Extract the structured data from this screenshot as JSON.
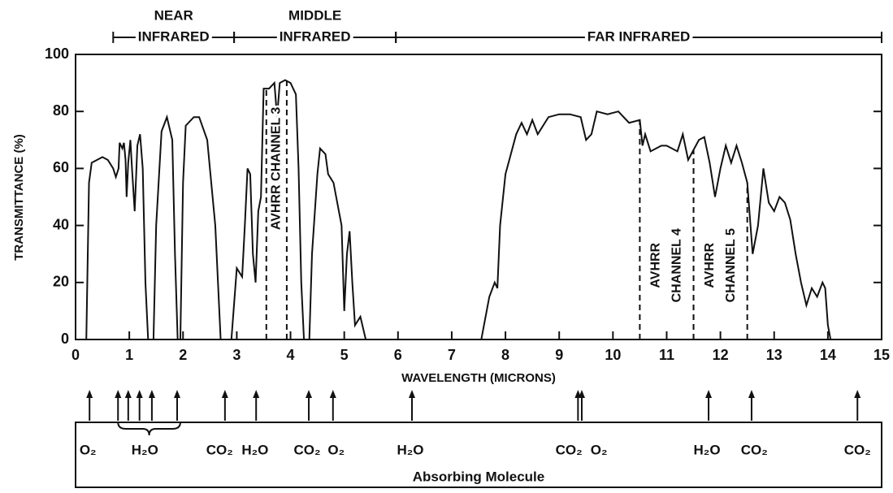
{
  "chart_data": {
    "type": "line",
    "xlabel": "WAVELENGTH (MICRONS)",
    "ylabel": "TRANSMITTANCE (%)",
    "xlim": [
      0,
      15
    ],
    "ylim": [
      0,
      100
    ],
    "xticks": [
      0,
      1,
      2,
      3,
      4,
      5,
      6,
      7,
      8,
      9,
      10,
      11,
      12,
      13,
      14,
      15
    ],
    "yticks": [
      0,
      20,
      40,
      60,
      80,
      100
    ],
    "color": "#111111",
    "x": [
      0.2,
      0.25,
      0.3,
      0.4,
      0.5,
      0.6,
      0.7,
      0.75,
      0.8,
      0.82,
      0.87,
      0.9,
      0.93,
      0.95,
      0.98,
      1.02,
      1.05,
      1.1,
      1.15,
      1.2,
      1.25,
      1.3,
      1.35,
      1.45,
      1.5,
      1.6,
      1.7,
      1.8,
      1.85,
      1.9,
      1.95,
      2.0,
      2.05,
      2.2,
      2.3,
      2.45,
      2.6,
      2.7,
      2.9,
      3.0,
      3.1,
      3.15,
      3.2,
      3.25,
      3.3,
      3.35,
      3.4,
      3.45,
      3.5,
      3.6,
      3.7,
      3.75,
      3.8,
      3.9,
      4.0,
      4.1,
      4.15,
      4.2,
      4.25,
      4.35,
      4.4,
      4.5,
      4.55,
      4.65,
      4.7,
      4.8,
      4.9,
      4.95,
      5.0,
      5.05,
      5.1,
      5.15,
      5.2,
      5.3,
      5.4,
      7.55,
      7.7,
      7.8,
      7.85,
      7.9,
      8.0,
      8.1,
      8.2,
      8.3,
      8.4,
      8.5,
      8.6,
      8.8,
      9.0,
      9.2,
      9.4,
      9.5,
      9.6,
      9.7,
      9.9,
      10.1,
      10.3,
      10.5,
      10.55,
      10.6,
      10.7,
      10.9,
      11.0,
      11.2,
      11.3,
      11.4,
      11.6,
      11.7,
      11.8,
      11.9,
      12.0,
      12.1,
      12.2,
      12.3,
      12.4,
      12.5,
      12.6,
      12.7,
      12.8,
      12.9,
      13.0,
      13.1,
      13.2,
      13.3,
      13.4,
      13.5,
      13.6,
      13.7,
      13.8,
      13.9,
      13.95,
      14.0,
      14.05
    ],
    "values": [
      0,
      55,
      62,
      63,
      64,
      63,
      60,
      57,
      60,
      69,
      67,
      69,
      63,
      50,
      62,
      70,
      60,
      45,
      68,
      72,
      60,
      20,
      0,
      0,
      40,
      73,
      78,
      70,
      30,
      0,
      0,
      55,
      75,
      78,
      78,
      70,
      40,
      0,
      0,
      25,
      22,
      40,
      60,
      58,
      30,
      20,
      45,
      50,
      88,
      88,
      90,
      78,
      90,
      91,
      90,
      86,
      60,
      20,
      0,
      0,
      30,
      58,
      67,
      65,
      58,
      55,
      45,
      40,
      10,
      30,
      38,
      20,
      5,
      8,
      0,
      0,
      15,
      20,
      18,
      40,
      58,
      65,
      72,
      76,
      72,
      77,
      72,
      78,
      79,
      79,
      78,
      70,
      72,
      80,
      79,
      80,
      76,
      77,
      68,
      72,
      66,
      68,
      68,
      66,
      72,
      63,
      70,
      71,
      62,
      50,
      60,
      68,
      62,
      68,
      62,
      55,
      30,
      40,
      60,
      48,
      45,
      50,
      48,
      42,
      30,
      20,
      12,
      18,
      15,
      20,
      18,
      5,
      0
    ],
    "regions": [
      {
        "label": [
          "NEAR",
          "INFRARED"
        ],
        "range": [
          0.7,
          2.95
        ]
      },
      {
        "label": [
          "MIDDLE",
          "INFRARED"
        ],
        "range": [
          2.95,
          5.96
        ]
      },
      {
        "label": [
          "FAR INFRARED"
        ],
        "range": [
          5.96,
          15
        ]
      }
    ],
    "channels": [
      {
        "label": [
          "AVHRR CHANNEL 3"
        ],
        "range": [
          3.55,
          3.93
        ]
      },
      {
        "label": [
          "AVHRR",
          "CHANNEL 4"
        ],
        "range": [
          10.5,
          11.5
        ]
      },
      {
        "label": [
          "AVHRR",
          "CHANNEL 5"
        ],
        "range": [
          11.5,
          12.5
        ]
      }
    ],
    "absorption_title": "Absorbing Molecule",
    "absorption_arrows": [
      0.26,
      0.79,
      0.98,
      1.19,
      1.42,
      1.89,
      2.78,
      3.36,
      4.34,
      4.79,
      6.26,
      9.35,
      9.42,
      11.78,
      12.58,
      14.55
    ],
    "absorption_brace": [
      0.79,
      1.95
    ],
    "molecules": [
      {
        "label": "O₂",
        "x": 0.23
      },
      {
        "label": "H₂O",
        "x": 1.29
      },
      {
        "label": "CO₂",
        "x": 2.68
      },
      {
        "label": "H₂O",
        "x": 3.34
      },
      {
        "label": "CO₂",
        "x": 4.31
      },
      {
        "label": "O₂",
        "x": 4.85
      },
      {
        "label": "H₂O",
        "x": 6.23
      },
      {
        "label": "CO₂",
        "x": 9.18
      },
      {
        "label": "O₂",
        "x": 9.74
      },
      {
        "label": "H₂O",
        "x": 11.75
      },
      {
        "label": "CO₂",
        "x": 12.63
      },
      {
        "label": "CO₂",
        "x": 14.55
      }
    ]
  }
}
